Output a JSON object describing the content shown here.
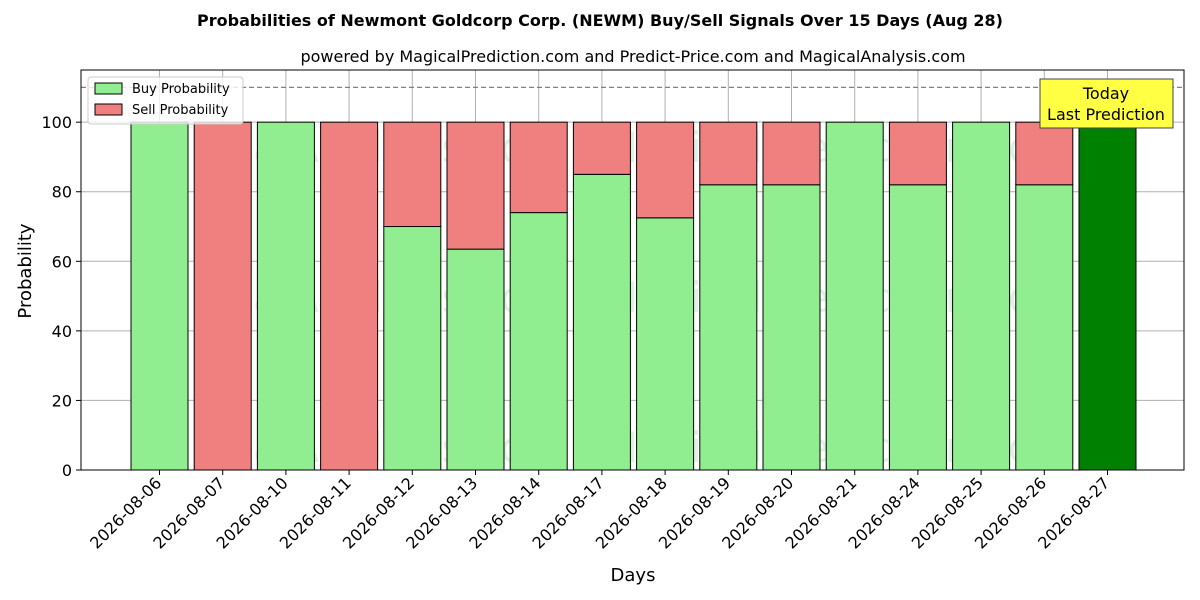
{
  "chart_data": {
    "type": "bar",
    "stacked": true,
    "title": "Probabilities of Newmont Goldcorp Corp. (NEWM) Buy/Sell Signals Over 15 Days (Aug 28)",
    "subtitle": "powered by MagicalPrediction.com and Predict-Price.com and MagicalAnalysis.com",
    "xlabel": "Days",
    "ylabel": "Probability",
    "ylim": [
      0,
      115
    ],
    "yticks": [
      0,
      20,
      40,
      60,
      80,
      100
    ],
    "grid": true,
    "reference_line": 110,
    "categories": [
      "2026-08-06",
      "2026-08-07",
      "2026-08-10",
      "2026-08-11",
      "2026-08-12",
      "2026-08-13",
      "2026-08-14",
      "2026-08-17",
      "2026-08-18",
      "2026-08-19",
      "2026-08-20",
      "2026-08-21",
      "2026-08-24",
      "2026-08-25",
      "2026-08-26",
      "2026-08-27"
    ],
    "series": [
      {
        "name": "Buy Probability",
        "color": "#90ee90",
        "values": [
          100,
          0,
          100,
          0,
          70,
          63.5,
          74,
          85,
          72.5,
          82,
          82,
          100,
          82,
          100,
          82,
          100
        ]
      },
      {
        "name": "Sell Probability",
        "color": "#f08080",
        "values": [
          0,
          100,
          0,
          100,
          30,
          36.5,
          26,
          15,
          27.5,
          18,
          18,
          0,
          18,
          0,
          18,
          0
        ]
      }
    ],
    "highlight": {
      "index": 15,
      "color": "#008000"
    },
    "legend": {
      "position": "top-left"
    },
    "annotation": {
      "lines": [
        "Today",
        "Last Prediction"
      ],
      "background": "#ffff44",
      "position": "top-right"
    },
    "watermarks": [
      "MagicalAnalysis.com",
      "MagicalPrediction.com"
    ]
  }
}
